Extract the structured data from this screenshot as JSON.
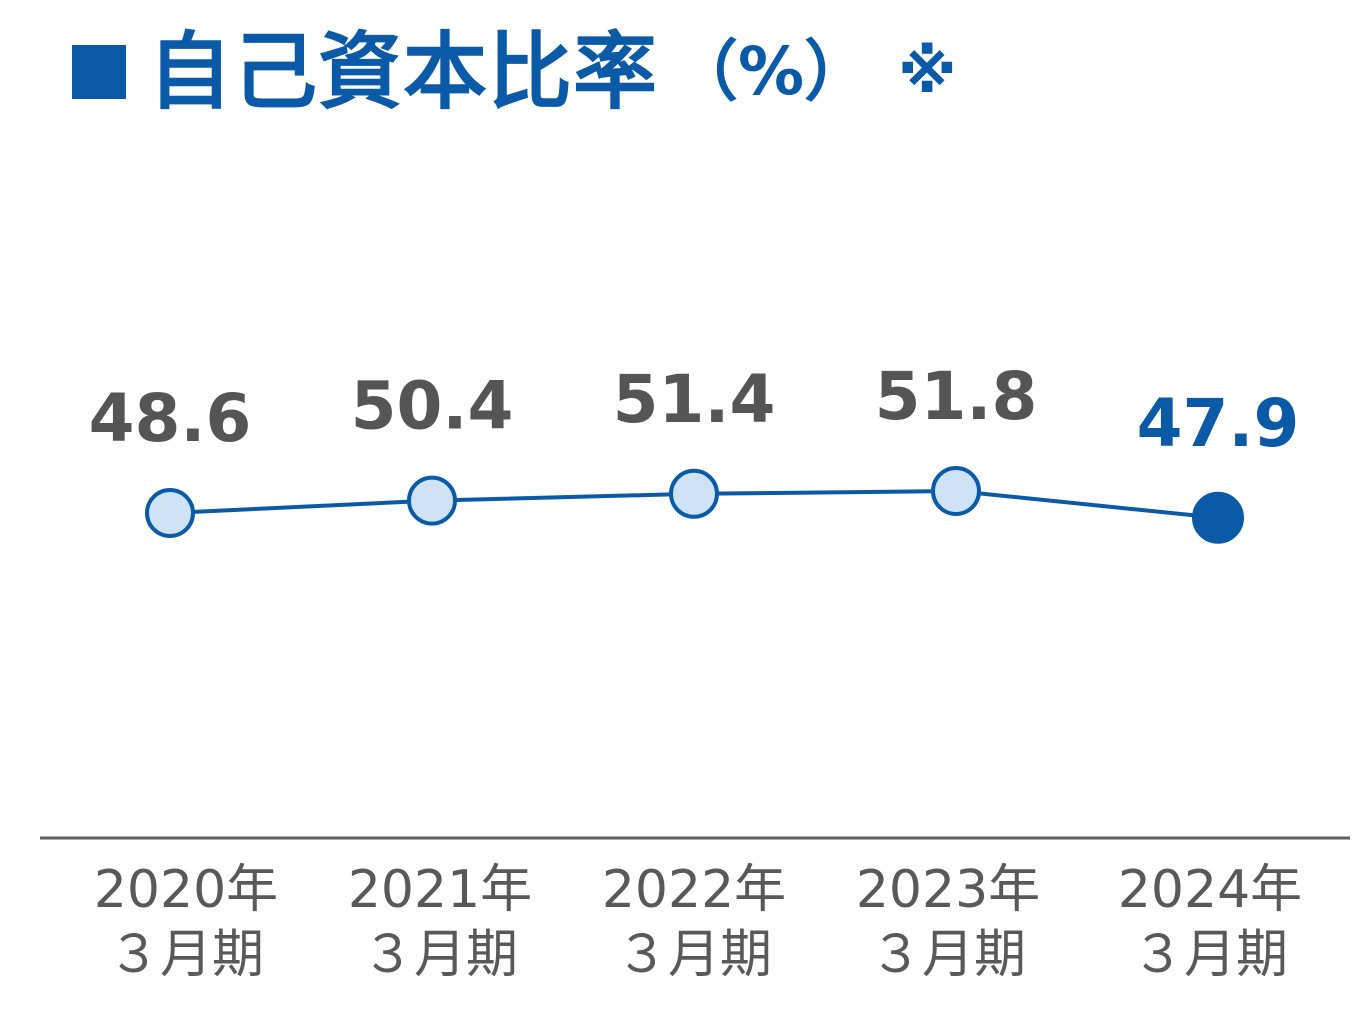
{
  "title": {
    "main": "自己資本比率",
    "unit": "（%）",
    "note": "※"
  },
  "colors": {
    "accent": "#0a5aa8",
    "value_text": "#555555",
    "highlight_text": "#0a5aa8",
    "marker_fill": "#cfe2f6",
    "marker_fill_highlight": "#0a5aa8",
    "axis_line": "#606060",
    "category_text": "#595959"
  },
  "chart_data": {
    "type": "line",
    "categories": [
      [
        "2020年",
        "３月期"
      ],
      [
        "2021年",
        "３月期"
      ],
      [
        "2022年",
        "３月期"
      ],
      [
        "2023年",
        "３月期"
      ],
      [
        "2024年",
        "３月期"
      ]
    ],
    "series": [
      {
        "values": [
          48.6,
          50.4,
          51.4,
          51.8,
          47.9
        ],
        "labels": [
          "48.6",
          "50.4",
          "51.4",
          "51.8",
          "47.9"
        ],
        "highlight_index": 4
      }
    ],
    "title": "自己資本比率（%）※",
    "xlabel": "",
    "ylabel": "",
    "grid": false,
    "legend": "none"
  }
}
